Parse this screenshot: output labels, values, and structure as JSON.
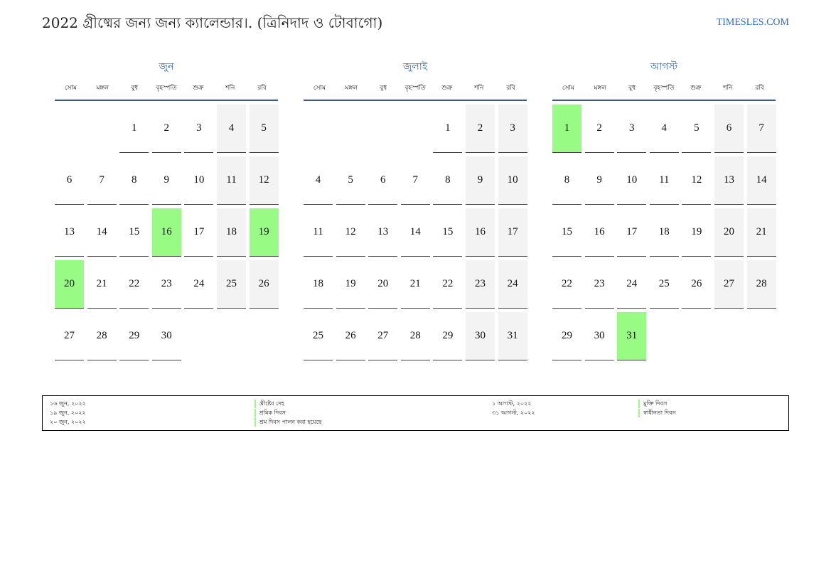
{
  "title": "2022 গ্রীষ্মের জন্য জন্য ক্যালেন্ডার।. (ত্রিনিদাদ ও টোবাগো)",
  "site": "TIMESLES.COM",
  "colors": {
    "accent": "#2a6ebb",
    "weekend": "#f3f3f3",
    "holiday": "#98fb84"
  },
  "weekdays": [
    "সোম",
    "মঙ্গল",
    "বুধ",
    "বৃহস্পতি",
    "শুক্র",
    "শনি",
    "রবি"
  ],
  "months": [
    {
      "name": "জুন",
      "offset": 2,
      "days": 30,
      "holidays": [
        16,
        19,
        20
      ]
    },
    {
      "name": "জুলাই",
      "offset": 4,
      "days": 31,
      "holidays": []
    },
    {
      "name": "আগস্ট",
      "offset": 0,
      "days": 31,
      "holidays": [
        1,
        31
      ]
    }
  ],
  "legend": [
    {
      "date": "১৬ জুন, ২০২২",
      "name": "খ্রীষ্টের দেহ"
    },
    {
      "date": "১৯ জুন, ২০২২",
      "name": "শ্রমিক দিবস"
    },
    {
      "date": "২০ জুন, ২০২২",
      "name": "শ্রম দিবস পালন করা হয়েছে"
    },
    {
      "date": "১ আগস্ট, ২০২২",
      "name": "মুক্তি দিবস"
    },
    {
      "date": "৩১ আগস্ট, ২০২২",
      "name": "স্বাধীনতা দিবস"
    }
  ]
}
